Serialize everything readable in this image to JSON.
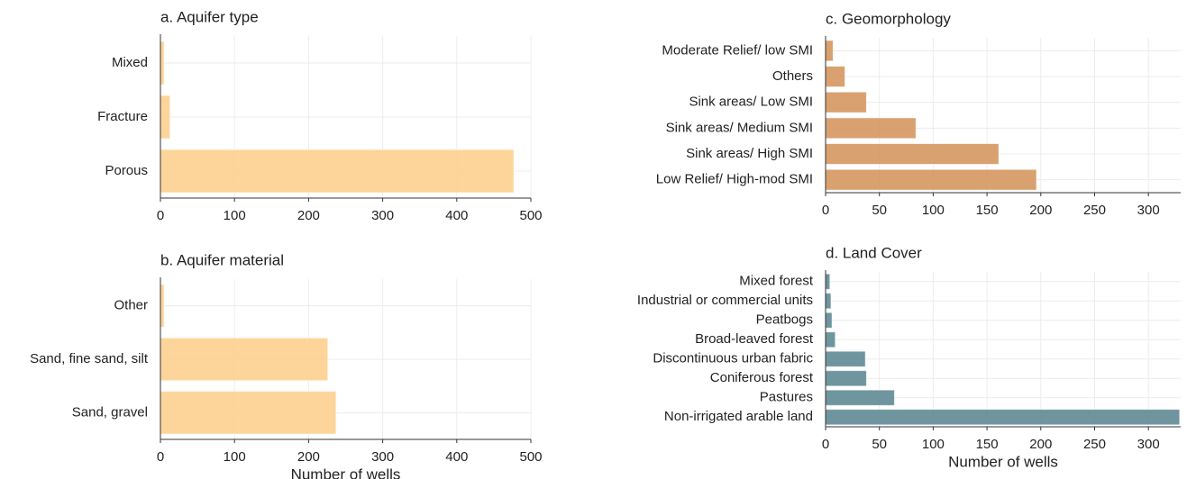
{
  "chart_data": [
    {
      "type": "bar",
      "orientation": "horizontal",
      "title": "a. Aquifer type",
      "categories": [
        "Mixed",
        "Fracture",
        "Porous"
      ],
      "values": [
        5,
        13,
        477
      ],
      "color": "#fdd090",
      "xlim": [
        0,
        500
      ],
      "xticks": [
        0,
        100,
        200,
        300,
        400,
        500
      ],
      "grid": true
    },
    {
      "type": "bar",
      "orientation": "horizontal",
      "title": "b. Aquifer material",
      "xlabel": "Number of wells",
      "categories": [
        "Other",
        "Sand, fine sand, silt",
        "Sand, gravel"
      ],
      "values": [
        5,
        226,
        237
      ],
      "color": "#fdd090",
      "xlim": [
        0,
        500
      ],
      "xticks": [
        0,
        100,
        200,
        300,
        400,
        500
      ],
      "grid": true
    },
    {
      "type": "bar",
      "orientation": "horizontal",
      "title": "c. Geomorphology",
      "categories": [
        "Moderate Relief/ low SMI",
        "Others",
        "Sink areas/ Low SMI",
        "Sink areas/ Medium SMI",
        "Sink areas/ High SMI",
        "Low Relief/ High-mod SMI"
      ],
      "values": [
        7,
        18,
        38,
        84,
        161,
        196
      ],
      "color": "#d4975f",
      "xlim": [
        0,
        330
      ],
      "xticks": [
        0,
        50,
        100,
        150,
        200,
        250,
        300
      ],
      "grid": true
    },
    {
      "type": "bar",
      "orientation": "horizontal",
      "title": "d. Land Cover",
      "xlabel": "Number of wells",
      "categories": [
        "Mixed forest",
        "Industrial or commercial units",
        "Peatbogs",
        "Broad-leaved forest",
        "Discontinuous urban fabric",
        "Coniferous forest",
        "Pastures",
        "Non-irrigated arable land"
      ],
      "values": [
        4,
        5,
        6,
        9,
        37,
        38,
        64,
        329
      ],
      "color": "#5f8a94",
      "xlim": [
        0,
        330
      ],
      "xticks": [
        0,
        50,
        100,
        150,
        200,
        250,
        300
      ],
      "grid": true
    }
  ]
}
